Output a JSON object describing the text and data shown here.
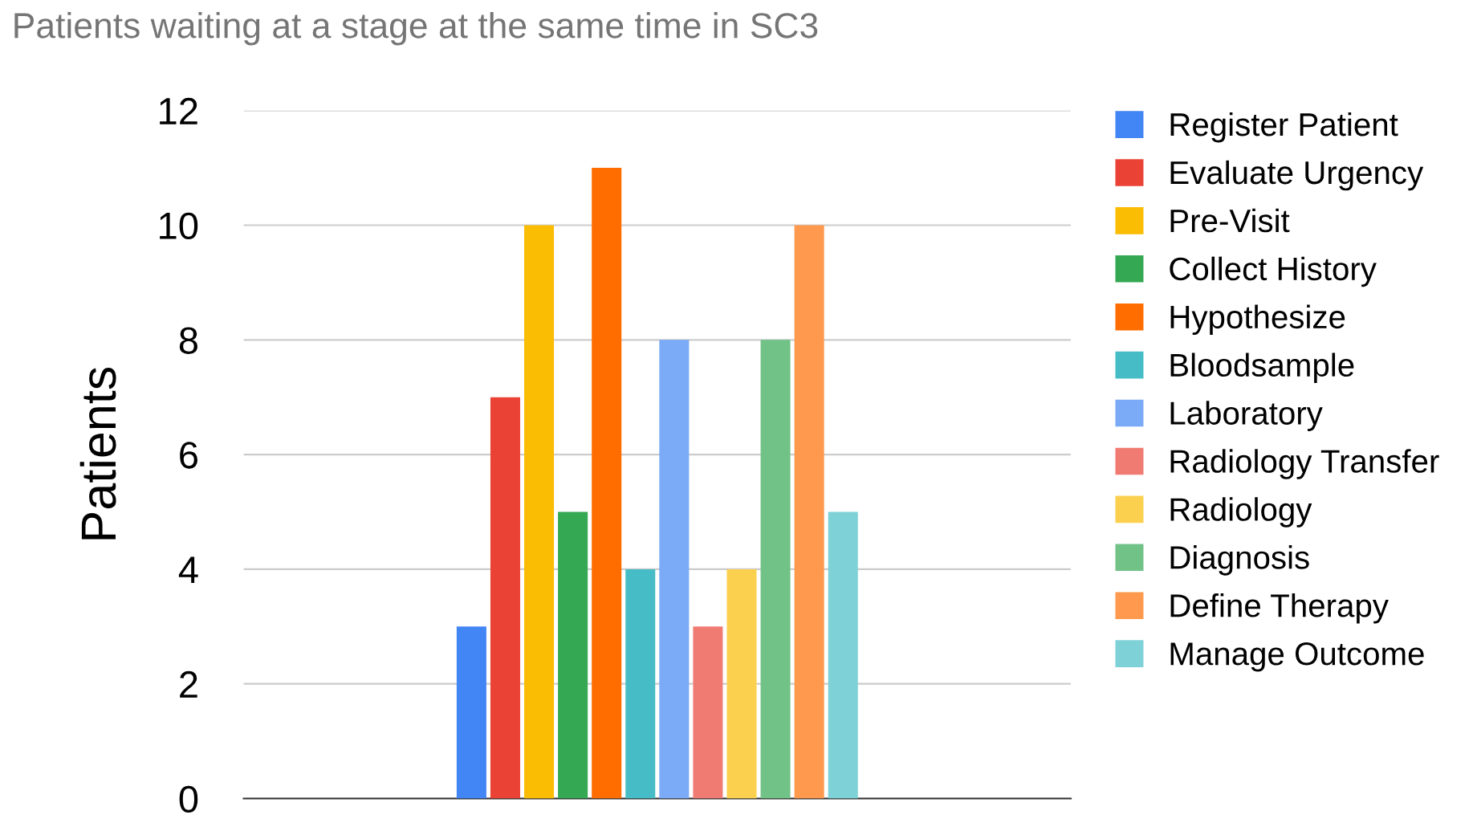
{
  "chart_data": {
    "type": "bar",
    "title": "Patients waiting at a stage at the same time in SC3",
    "ylabel": "Patients",
    "categories": [
      null
    ],
    "series": [
      {
        "name": "Register Patient",
        "color": "#4285f4",
        "values": [
          3
        ]
      },
      {
        "name": "Evaluate Urgency",
        "color": "#ea4335",
        "values": [
          7
        ]
      },
      {
        "name": "Pre-Visit",
        "color": "#fbbc04",
        "values": [
          10
        ]
      },
      {
        "name": "Collect History",
        "color": "#34a853",
        "values": [
          5
        ]
      },
      {
        "name": "Hypothesize",
        "color": "#ff6d01",
        "values": [
          11
        ]
      },
      {
        "name": "Bloodsample",
        "color": "#46bdc6",
        "values": [
          4
        ]
      },
      {
        "name": "Laboratory",
        "color": "#7baaf7",
        "values": [
          8
        ]
      },
      {
        "name": "Radiology Transfer",
        "color": "#f07b72",
        "values": [
          3
        ]
      },
      {
        "name": "Radiology",
        "color": "#fcd04f",
        "values": [
          4
        ]
      },
      {
        "name": "Diagnosis",
        "color": "#71c287",
        "values": [
          8
        ]
      },
      {
        "name": "Define Therapy",
        "color": "#ff994d",
        "values": [
          10
        ]
      },
      {
        "name": "Manage Outcome",
        "color": "#7ed1d7",
        "values": [
          5
        ]
      }
    ],
    "ylim": [
      0,
      12
    ],
    "yticks": [
      0,
      2,
      4,
      6,
      8,
      10,
      12
    ],
    "grid": "y",
    "legend": "right",
    "tick_labels": "y"
  }
}
